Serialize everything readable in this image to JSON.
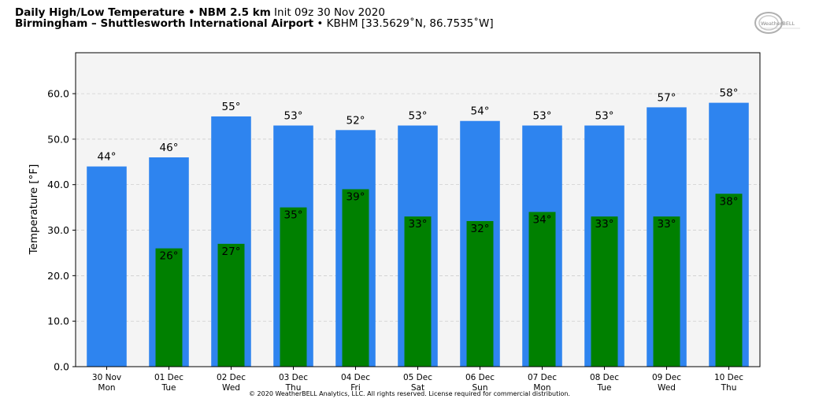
{
  "header": {
    "title_bold": "Daily High/Low Temperature • NBM 2.5 km",
    "title_normal": " Init 09z 30 Nov 2020",
    "location_bold": "Birmingham – Shuttlesworth International Airport",
    "location_normal": " • KBHM [33.5629˚N, 86.7535˚W]"
  },
  "logo": {
    "text": "WeatherBELL",
    "icon": "weatherbell-logo"
  },
  "footer": "© 2020 WeatherBELL Analytics, LLC. All rights reserved. License required for commercial distribution.",
  "chart_data": {
    "type": "bar",
    "categories": [
      [
        "30 Nov",
        "Mon"
      ],
      [
        "01 Dec",
        "Tue"
      ],
      [
        "02 Dec",
        "Wed"
      ],
      [
        "03 Dec",
        "Thu"
      ],
      [
        "04 Dec",
        "Fri"
      ],
      [
        "05 Dec",
        "Sat"
      ],
      [
        "06 Dec",
        "Sun"
      ],
      [
        "07 Dec",
        "Mon"
      ],
      [
        "08 Dec",
        "Tue"
      ],
      [
        "09 Dec",
        "Wed"
      ],
      [
        "10 Dec",
        "Thu"
      ]
    ],
    "series": [
      {
        "values": [
          44,
          46,
          55,
          53,
          52,
          53,
          54,
          53,
          53,
          57,
          58
        ],
        "color": "#2e84ef"
      },
      {
        "values": [
          null,
          26,
          27,
          35,
          39,
          33,
          32,
          34,
          33,
          33,
          38
        ],
        "color": "#008000"
      }
    ],
    "ylabel": "Temperature [°F]",
    "ylim": [
      0,
      69
    ],
    "yticks": [
      "0.0",
      "10.0",
      "20.0",
      "30.0",
      "40.0",
      "50.0",
      "60.0"
    ],
    "grid": true,
    "plot_background": "#f4f4f4",
    "value_suffix": "°"
  }
}
